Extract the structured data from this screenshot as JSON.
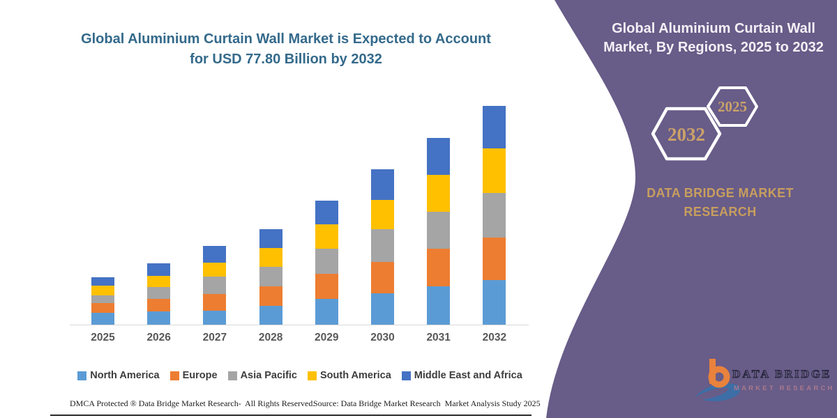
{
  "left_panel": {
    "title_line1": "Global Aluminium Curtain Wall Market is Expected to Account",
    "title_line2": "for USD 77.80 Billion by 2032",
    "footer_left": "DMCA Protected ® Data Bridge Market Research-  All Rights Reserved.",
    "footer_right": "Source: Data Bridge Market Research  Market Analysis Study 2025"
  },
  "right_panel": {
    "title_line1": "Global Aluminium Curtain Wall",
    "title_line2": "Market, By Regions, 2025 to 2032",
    "hexagon_back_label": "2032",
    "hexagon_front_label": "2025",
    "brand_line1": "DATA BRIDGE MARKET",
    "brand_line2": "RESEARCH",
    "logo": {
      "letter": "b",
      "name_line": "DATA BRIDGE",
      "tagline": "MARKET RESEARCH"
    },
    "colors": {
      "background_purple": "#685C88",
      "gold_text": "#C79E5E",
      "hexagon_outline": "#FFFFFF",
      "logo_orange": "#E8823D",
      "logo_blue": "#3E6EA6"
    }
  },
  "chart_data": {
    "type": "bar",
    "stacked": true,
    "title": "Global Aluminium Curtain Wall Market is Expected to Account for USD 77.80 Billion by 2032",
    "unit": "USD Billion",
    "note": "No value axis shown in source; series values estimated from relative bar-segment heights, anchored to USD 77.80 Billion total in 2032.",
    "categories": [
      "2025",
      "2026",
      "2027",
      "2028",
      "2029",
      "2030",
      "2031",
      "2032"
    ],
    "series": [
      {
        "name": "North America",
        "color": "#5B9BD5",
        "values": [
          4.3,
          4.7,
          5.0,
          6.8,
          9.1,
          11.1,
          13.6,
          15.9
        ]
      },
      {
        "name": "Europe",
        "color": "#ED7D31",
        "values": [
          3.3,
          4.5,
          5.8,
          6.9,
          9.1,
          11.3,
          13.5,
          15.2
        ]
      },
      {
        "name": "Asia Pacific",
        "color": "#A5A5A5",
        "values": [
          2.9,
          4.2,
          6.3,
          6.9,
          8.9,
          11.6,
          13.0,
          15.8
        ]
      },
      {
        "name": "South America",
        "color": "#FFC000",
        "values": [
          3.3,
          4.0,
          5.0,
          6.6,
          8.6,
          10.4,
          13.2,
          15.8
        ]
      },
      {
        "name": "Middle East and Africa",
        "color": "#4472C4",
        "values": [
          3.1,
          4.5,
          5.9,
          6.7,
          8.5,
          10.9,
          13.2,
          15.1
        ]
      }
    ],
    "totals_estimated": [
      16.9,
      21.9,
      28.0,
      33.9,
      44.2,
      55.3,
      66.5,
      77.8
    ],
    "legend_position": "bottom",
    "x_axis_labels_visible": true,
    "y_axis_visible": false,
    "grid": false
  }
}
